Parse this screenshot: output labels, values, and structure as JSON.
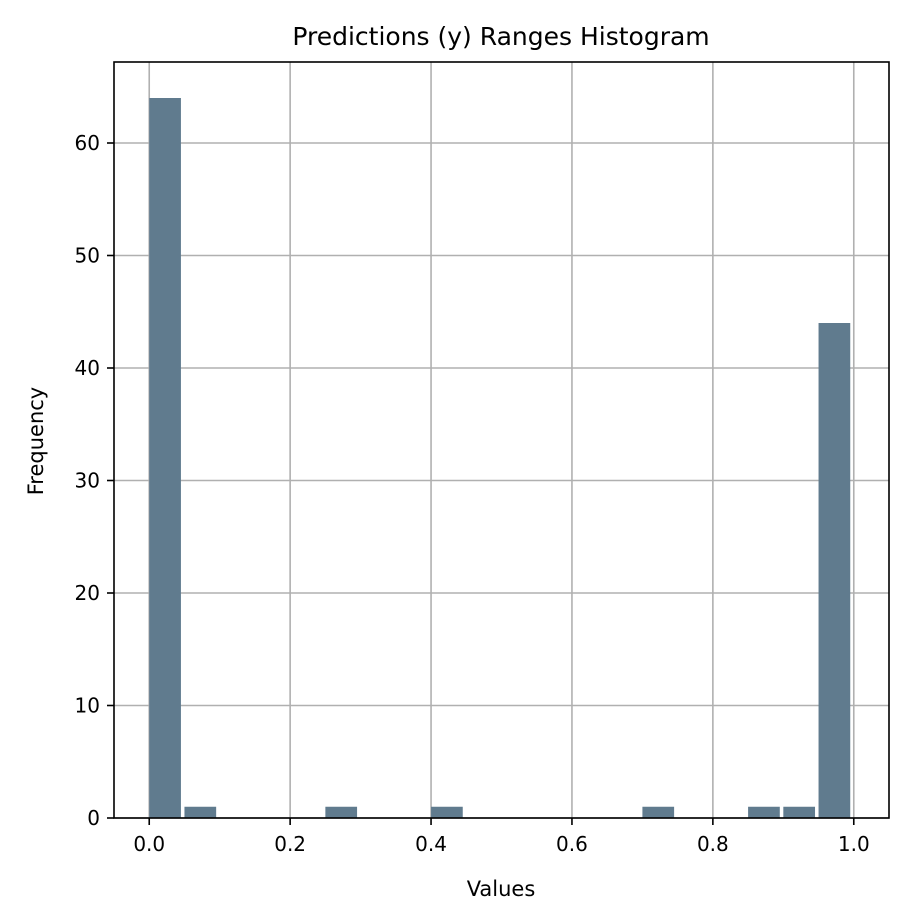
{
  "chart_data": {
    "type": "bar",
    "title": "Predictions (y) Ranges Histogram",
    "xlabel": "Values",
    "ylabel": "Frequency",
    "xlim": [
      -0.05,
      1.05
    ],
    "ylim": [
      0,
      67.2
    ],
    "xticks": [
      {
        "value": 0.0,
        "label": "0.0"
      },
      {
        "value": 0.2,
        "label": "0.2"
      },
      {
        "value": 0.4,
        "label": "0.4"
      },
      {
        "value": 0.6,
        "label": "0.6"
      },
      {
        "value": 0.8,
        "label": "0.8"
      },
      {
        "value": 1.0,
        "label": "1.0"
      }
    ],
    "yticks": [
      {
        "value": 0,
        "label": "0"
      },
      {
        "value": 10,
        "label": "10"
      },
      {
        "value": 20,
        "label": "20"
      },
      {
        "value": 30,
        "label": "30"
      },
      {
        "value": 40,
        "label": "40"
      },
      {
        "value": 50,
        "label": "50"
      },
      {
        "value": 60,
        "label": "60"
      }
    ],
    "bin_edges": [
      0.0,
      0.05,
      0.1,
      0.15,
      0.2,
      0.25,
      0.3,
      0.35,
      0.4,
      0.45,
      0.5,
      0.55,
      0.6,
      0.65,
      0.7,
      0.75,
      0.8,
      0.85,
      0.9,
      0.95,
      1.0
    ],
    "values": [
      64,
      1,
      0,
      0,
      0,
      1,
      0,
      0,
      1,
      0,
      0,
      0,
      0,
      0,
      1,
      0,
      0,
      1,
      1,
      44
    ],
    "bar_width_fraction": 0.9,
    "grid": true
  },
  "colors": {
    "bar": "#607b8e",
    "grid": "#b0b0b0",
    "axis": "#000000"
  }
}
